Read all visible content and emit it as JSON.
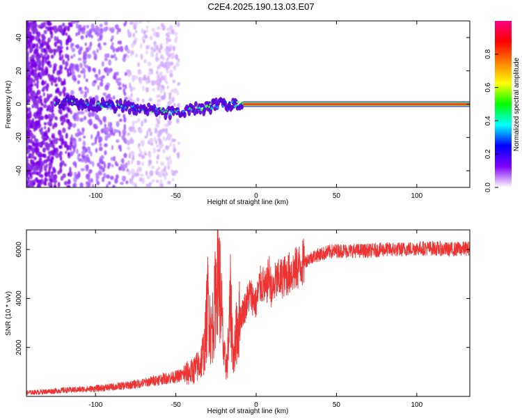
{
  "title": "C2E4.2025.190.13.03.E07",
  "chart_data": [
    {
      "type": "heatmap",
      "xlabel": "Height of straight line (km)",
      "ylabel": "Frequency (Hz)",
      "xlim": [
        -143,
        133
      ],
      "ylim": [
        -50,
        50
      ],
      "xticks": [
        -100,
        -50,
        0,
        50,
        100
      ],
      "yticks": [
        -40,
        -20,
        0,
        20,
        40
      ],
      "colorbar": {
        "label": "Normalized spectral amplitude",
        "ticks": [
          0.0,
          0.2,
          0.4,
          0.6,
          0.8
        ],
        "colors": [
          "#ffffff",
          "#8000ff",
          "#0000ff",
          "#00ffff",
          "#00ff00",
          "#ffff00",
          "#ff8000",
          "#ff0000",
          "#ff0080"
        ]
      },
      "ridge": [
        {
          "x": -120,
          "y": 2
        },
        {
          "x": -110,
          "y": 0
        },
        {
          "x": -100,
          "y": 0
        },
        {
          "x": -90,
          "y": -1
        },
        {
          "x": -80,
          "y": -2
        },
        {
          "x": -70,
          "y": -3
        },
        {
          "x": -60,
          "y": -4
        },
        {
          "x": -50,
          "y": -5
        },
        {
          "x": -40,
          "y": -3
        },
        {
          "x": -30,
          "y": -2
        },
        {
          "x": -20,
          "y": 0
        },
        {
          "x": -10,
          "y": 0
        },
        {
          "x": 0,
          "y": 0
        },
        {
          "x": 50,
          "y": 0
        },
        {
          "x": 100,
          "y": 0
        },
        {
          "x": 133,
          "y": 0
        }
      ],
      "grid": false
    },
    {
      "type": "line",
      "xlabel": "Height of straight line (km)",
      "ylabel": "SNR (10 * v/v)",
      "xlim": [
        -143,
        133
      ],
      "ylim": [
        0,
        6800
      ],
      "xticks": [
        -100,
        -50,
        0,
        50,
        100
      ],
      "yticks": [
        2000,
        4000,
        6000
      ],
      "color": "#ee3333",
      "series": [
        {
          "x": [
            -143,
            -130,
            -120,
            -110,
            -100,
            -90,
            -80,
            -70,
            -60,
            -50,
            -45,
            -40,
            -35,
            -32,
            -30,
            -28,
            -26,
            -24,
            -22,
            -20,
            -18,
            -16,
            -14,
            -12,
            -10,
            -8,
            -6,
            -4,
            -2,
            0,
            2,
            4,
            6,
            8,
            10,
            12,
            15,
            20,
            25,
            30,
            35,
            40,
            45,
            50,
            60,
            70,
            80,
            90,
            100,
            110,
            120,
            133
          ],
          "y": [
            150,
            200,
            250,
            280,
            320,
            380,
            450,
            550,
            700,
            800,
            900,
            1000,
            1300,
            2000,
            4000,
            2500,
            3500,
            5500,
            4000,
            1500,
            1300,
            3800,
            1500,
            2800,
            3200,
            3500,
            3800,
            4200,
            4000,
            3800,
            4500,
            4600,
            4300,
            5000,
            4200,
            4700,
            4800,
            5000,
            5200,
            5500,
            5700,
            5800,
            5900,
            5950,
            5950,
            5950,
            6000,
            6000,
            6050,
            6050,
            6000,
            6050
          ]
        }
      ],
      "grid": false
    }
  ]
}
